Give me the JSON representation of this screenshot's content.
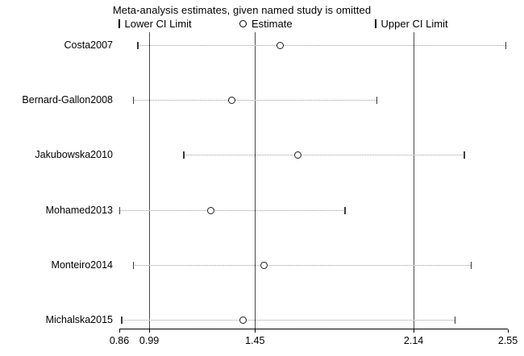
{
  "legend": {
    "lower_label": "Lower CI Limit",
    "estimate_label": "Estimate",
    "upper_label": "Upper CI Limit"
  },
  "colors": {
    "text": "#000000",
    "reference_line": "#4a4a4a",
    "dotted_ci_line": "#9b9b9b",
    "marker_outline": "#1a1a1a",
    "background": "#ffffff"
  },
  "chart_data": {
    "type": "scatter",
    "subtype": "leave-one-out-forest-plot",
    "title": "Meta-analysis estimates, given named study is omitted",
    "xlabel": "",
    "ylabel": "",
    "x_range": [
      0.86,
      2.55
    ],
    "x_ticks": [
      0.86,
      0.99,
      1.45,
      2.14,
      2.55
    ],
    "reference_lines": [
      0.99,
      1.45,
      2.14
    ],
    "grid": false,
    "legend_position": "top",
    "studies": [
      {
        "name": "Costa2007",
        "lower": 0.94,
        "estimate": 1.56,
        "upper": 2.54
      },
      {
        "name": "Bernard-Gallon2008",
        "lower": 0.92,
        "estimate": 1.35,
        "upper": 1.98
      },
      {
        "name": "Jakubowska2010",
        "lower": 1.14,
        "estimate": 1.64,
        "upper": 2.36
      },
      {
        "name": "Mohamed2013",
        "lower": 0.86,
        "estimate": 1.26,
        "upper": 1.84
      },
      {
        "name": "Monteiro2014",
        "lower": 0.92,
        "estimate": 1.49,
        "upper": 2.39
      },
      {
        "name": "Michalska2015",
        "lower": 0.87,
        "estimate": 1.4,
        "upper": 2.32
      }
    ]
  }
}
